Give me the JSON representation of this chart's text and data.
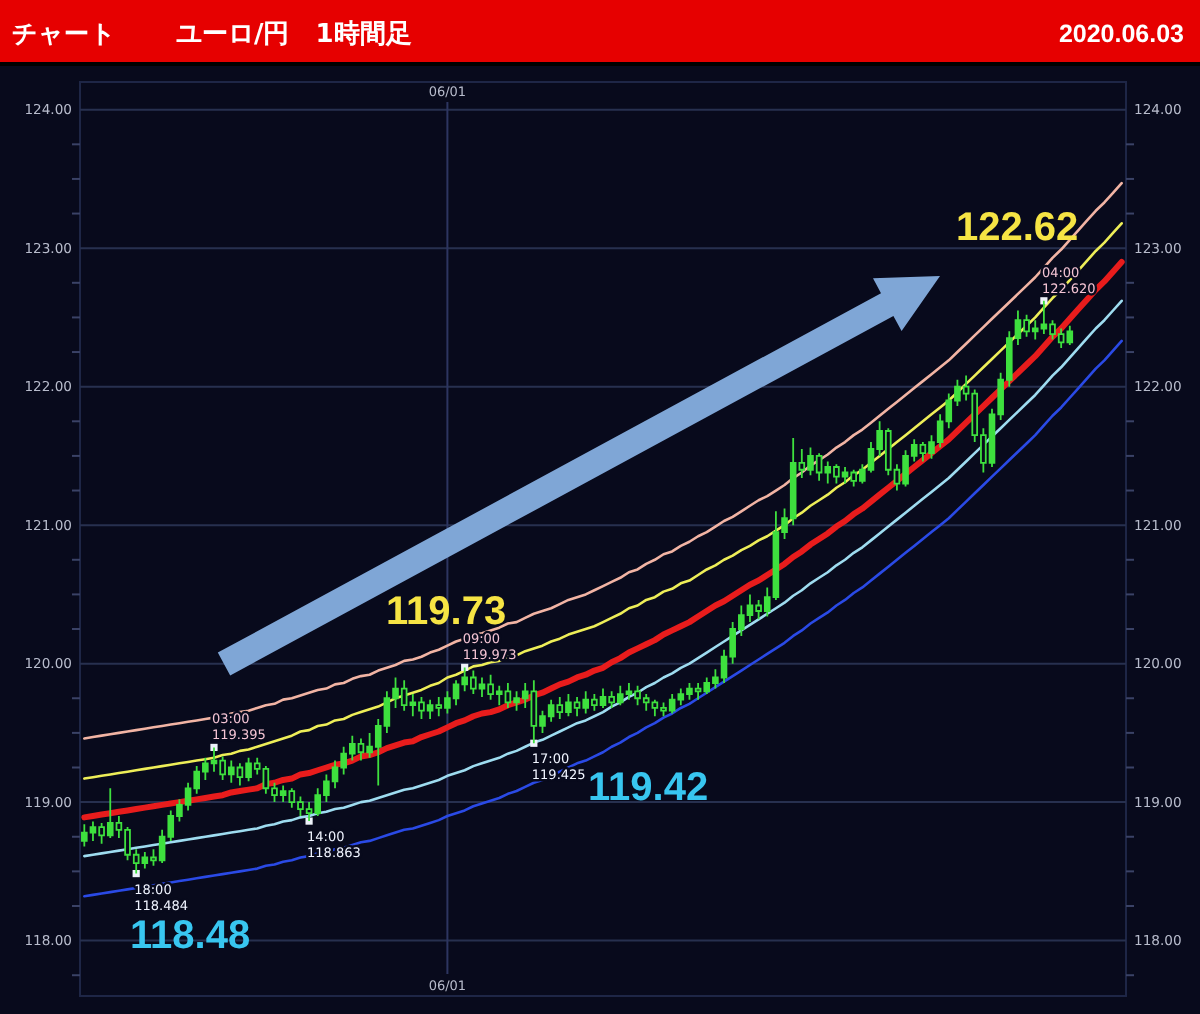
{
  "chart_data": {
    "type": "candlestick",
    "title": "チャート",
    "subtitle": "ユーロ/円　1時間足",
    "annotations": [
      "2020.06.03",
      "118.48",
      "119.73",
      "119.42",
      "122.62"
    ],
    "categories": [
      null,
      null,
      null,
      null,
      null,
      null,
      null,
      null,
      null,
      null,
      null,
      null,
      null,
      null,
      null,
      null,
      null,
      null,
      null,
      null,
      null,
      null,
      null,
      null,
      null,
      null,
      null,
      null,
      null,
      null,
      null,
      null,
      null,
      null,
      null,
      null,
      null,
      null,
      null,
      null,
      null,
      null,
      "06/01",
      null,
      null,
      null,
      null,
      null,
      null,
      null,
      null,
      null,
      null,
      null,
      null,
      null,
      null,
      null,
      null,
      null,
      null,
      null,
      null,
      null,
      null,
      null,
      null,
      null,
      null,
      null,
      null,
      null,
      null,
      null,
      null,
      null,
      null,
      null,
      null,
      null,
      null,
      null,
      null,
      null,
      null,
      null,
      null,
      null,
      null,
      null,
      null,
      null,
      null,
      null,
      null,
      null,
      null,
      null,
      null,
      null,
      null,
      null,
      null,
      null,
      null,
      null,
      null,
      null,
      null,
      null,
      null,
      null,
      null,
      null,
      null,
      null,
      null,
      null,
      null,
      null,
      null
    ],
    "color": "#3ee03e",
    "ohlc": [
      [
        118.72,
        118.84,
        118.68,
        118.78
      ],
      [
        118.78,
        118.86,
        118.72,
        118.82
      ],
      [
        118.82,
        118.85,
        118.7,
        118.76
      ],
      [
        118.76,
        119.1,
        118.74,
        118.85
      ],
      [
        118.85,
        118.9,
        118.74,
        118.8
      ],
      [
        118.8,
        118.82,
        118.58,
        118.62
      ],
      [
        118.62,
        118.66,
        118.484,
        118.56
      ],
      [
        118.56,
        118.64,
        118.52,
        118.6
      ],
      [
        118.6,
        118.66,
        118.54,
        118.58
      ],
      [
        118.58,
        118.8,
        118.56,
        118.75
      ],
      [
        118.75,
        118.94,
        118.72,
        118.9
      ],
      [
        118.9,
        119.02,
        118.86,
        118.98
      ],
      [
        118.98,
        119.14,
        118.94,
        119.1
      ],
      [
        119.1,
        119.26,
        119.06,
        119.22
      ],
      [
        119.22,
        119.32,
        119.16,
        119.28
      ],
      [
        119.28,
        119.395,
        119.22,
        119.3
      ],
      [
        119.3,
        119.33,
        119.16,
        119.2
      ],
      [
        119.2,
        119.3,
        119.14,
        119.25
      ],
      [
        119.25,
        119.28,
        119.12,
        119.18
      ],
      [
        119.18,
        119.32,
        119.15,
        119.28
      ],
      [
        119.28,
        119.32,
        119.2,
        119.24
      ],
      [
        119.24,
        119.26,
        119.06,
        119.1
      ],
      [
        119.1,
        119.14,
        119.0,
        119.05
      ],
      [
        119.05,
        119.12,
        119.0,
        119.08
      ],
      [
        119.08,
        119.1,
        118.96,
        119.0
      ],
      [
        119.0,
        119.04,
        118.9,
        118.95
      ],
      [
        118.95,
        119.0,
        118.863,
        118.92
      ],
      [
        118.92,
        119.1,
        118.9,
        119.05
      ],
      [
        119.05,
        119.2,
        119.0,
        119.15
      ],
      [
        119.15,
        119.3,
        119.1,
        119.25
      ],
      [
        119.25,
        119.4,
        119.2,
        119.35
      ],
      [
        119.35,
        119.48,
        119.3,
        119.42
      ],
      [
        119.42,
        119.46,
        119.3,
        119.36
      ],
      [
        119.36,
        119.5,
        119.32,
        119.4
      ],
      [
        119.4,
        119.6,
        119.12,
        119.55
      ],
      [
        119.55,
        119.8,
        119.5,
        119.75
      ],
      [
        119.75,
        119.9,
        119.68,
        119.82
      ],
      [
        119.82,
        119.88,
        119.66,
        119.7
      ],
      [
        119.7,
        119.78,
        119.62,
        119.72
      ],
      [
        119.72,
        119.76,
        119.6,
        119.66
      ],
      [
        119.66,
        119.74,
        119.6,
        119.7
      ],
      [
        119.7,
        119.76,
        119.62,
        119.68
      ],
      [
        119.68,
        119.8,
        119.64,
        119.75
      ],
      [
        119.75,
        119.88,
        119.7,
        119.85
      ],
      [
        119.85,
        119.973,
        119.8,
        119.9
      ],
      [
        119.9,
        119.95,
        119.78,
        119.82
      ],
      [
        119.82,
        119.9,
        119.76,
        119.85
      ],
      [
        119.85,
        119.92,
        119.74,
        119.78
      ],
      [
        119.78,
        119.84,
        119.7,
        119.8
      ],
      [
        119.8,
        119.86,
        119.68,
        119.72
      ],
      [
        119.72,
        119.8,
        119.66,
        119.75
      ],
      [
        119.75,
        119.86,
        119.68,
        119.8
      ],
      [
        119.8,
        119.88,
        119.425,
        119.55
      ],
      [
        119.55,
        119.66,
        119.5,
        119.62
      ],
      [
        119.62,
        119.74,
        119.58,
        119.7
      ],
      [
        119.7,
        119.76,
        119.6,
        119.65
      ],
      [
        119.65,
        119.78,
        119.62,
        119.72
      ],
      [
        119.72,
        119.76,
        119.62,
        119.68
      ],
      [
        119.68,
        119.8,
        119.64,
        119.74
      ],
      [
        119.74,
        119.78,
        119.66,
        119.7
      ],
      [
        119.7,
        119.82,
        119.68,
        119.76
      ],
      [
        119.76,
        119.8,
        119.68,
        119.72
      ],
      [
        119.72,
        119.84,
        119.7,
        119.78
      ],
      [
        119.78,
        119.86,
        119.74,
        119.8
      ],
      [
        119.8,
        119.84,
        119.7,
        119.75
      ],
      [
        119.75,
        119.78,
        119.66,
        119.72
      ],
      [
        119.72,
        119.74,
        119.62,
        119.68
      ],
      [
        119.68,
        119.72,
        119.62,
        119.66
      ],
      [
        119.66,
        119.78,
        119.64,
        119.74
      ],
      [
        119.74,
        119.82,
        119.7,
        119.78
      ],
      [
        119.78,
        119.86,
        119.74,
        119.82
      ],
      [
        119.82,
        119.86,
        119.74,
        119.8
      ],
      [
        119.8,
        119.9,
        119.78,
        119.86
      ],
      [
        119.86,
        119.96,
        119.82,
        119.9
      ],
      [
        119.9,
        120.1,
        119.86,
        120.05
      ],
      [
        120.05,
        120.3,
        120.0,
        120.25
      ],
      [
        120.25,
        120.42,
        120.2,
        120.35
      ],
      [
        120.35,
        120.5,
        120.3,
        120.42
      ],
      [
        120.42,
        120.46,
        120.32,
        120.38
      ],
      [
        120.38,
        120.55,
        120.34,
        120.48
      ],
      [
        120.48,
        121.1,
        120.46,
        120.95
      ],
      [
        120.95,
        121.12,
        120.9,
        121.05
      ],
      [
        121.05,
        121.63,
        121.0,
        121.45
      ],
      [
        121.45,
        121.55,
        121.34,
        121.4
      ],
      [
        121.4,
        121.56,
        121.36,
        121.5
      ],
      [
        121.5,
        121.52,
        121.32,
        121.38
      ],
      [
        121.38,
        121.46,
        121.3,
        121.42
      ],
      [
        121.42,
        121.44,
        121.3,
        121.35
      ],
      [
        121.35,
        121.42,
        121.3,
        121.38
      ],
      [
        121.38,
        121.4,
        121.28,
        121.32
      ],
      [
        121.32,
        121.44,
        121.3,
        121.4
      ],
      [
        121.4,
        121.6,
        121.38,
        121.55
      ],
      [
        121.55,
        121.75,
        121.5,
        121.68
      ],
      [
        121.68,
        121.7,
        121.36,
        121.4
      ],
      [
        121.4,
        121.44,
        121.25,
        121.3
      ],
      [
        121.3,
        121.54,
        121.28,
        121.5
      ],
      [
        121.5,
        121.62,
        121.46,
        121.58
      ],
      [
        121.58,
        121.6,
        121.46,
        121.52
      ],
      [
        121.52,
        121.65,
        121.48,
        121.6
      ],
      [
        121.6,
        121.8,
        121.56,
        121.75
      ],
      [
        121.75,
        121.95,
        121.7,
        121.9
      ],
      [
        121.9,
        122.05,
        121.86,
        122.0
      ],
      [
        122.0,
        122.08,
        121.9,
        121.95
      ],
      [
        121.95,
        121.98,
        121.6,
        121.65
      ],
      [
        121.65,
        121.7,
        121.38,
        121.45
      ],
      [
        121.45,
        121.84,
        121.42,
        121.8
      ],
      [
        121.8,
        122.1,
        121.76,
        122.05
      ],
      [
        122.05,
        122.4,
        122.0,
        122.35
      ],
      [
        122.35,
        122.55,
        122.3,
        122.48
      ],
      [
        122.48,
        122.52,
        122.36,
        122.4
      ],
      [
        122.4,
        122.48,
        122.34,
        122.42
      ],
      [
        122.42,
        122.62,
        122.38,
        122.45
      ],
      [
        122.45,
        122.48,
        122.34,
        122.38
      ],
      [
        122.38,
        122.42,
        122.28,
        122.32
      ],
      [
        122.32,
        122.44,
        122.3,
        122.4
      ],
      null,
      null,
      null,
      null,
      null,
      null
    ],
    "series": [
      {
        "type": "line",
        "color": "#f2b4a4",
        "values": [
          119.46,
          119.47,
          119.48,
          119.49,
          119.5,
          119.51,
          119.52,
          119.53,
          119.54,
          119.55,
          119.56,
          119.57,
          119.58,
          119.59,
          119.6,
          119.61,
          119.62,
          119.64,
          119.65,
          119.66,
          119.68,
          119.7,
          119.71,
          119.74,
          119.75,
          119.77,
          119.79,
          119.81,
          119.82,
          119.85,
          119.86,
          119.89,
          119.91,
          119.92,
          119.95,
          119.97,
          119.99,
          120.02,
          120.03,
          120.05,
          120.08,
          120.1,
          120.13,
          120.16,
          120.18,
          120.21,
          120.22,
          120.24,
          120.26,
          120.29,
          120.3,
          120.33,
          120.36,
          120.38,
          120.4,
          120.43,
          120.46,
          120.48,
          120.5,
          120.53,
          120.56,
          120.59,
          120.62,
          120.66,
          120.68,
          120.72,
          120.75,
          120.79,
          120.81,
          120.85,
          120.88,
          120.92,
          120.95,
          120.99,
          121.03,
          121.06,
          121.1,
          121.14,
          121.18,
          121.21,
          121.25,
          121.29,
          121.34,
          121.38,
          121.43,
          121.47,
          121.51,
          121.56,
          121.6,
          121.65,
          121.69,
          121.74,
          121.79,
          121.84,
          121.89,
          121.94,
          121.99,
          122.04,
          122.09,
          122.14,
          122.19,
          122.25,
          122.31,
          122.37,
          122.43,
          122.49,
          122.55,
          122.61,
          122.67,
          122.73,
          122.79,
          122.86,
          122.93,
          122.99,
          123.06,
          123.13,
          123.2,
          123.27,
          123.33,
          123.4,
          123.47
        ]
      },
      {
        "type": "line",
        "color": "#eeee58",
        "values": [
          119.17,
          119.18,
          119.19,
          119.2,
          119.21,
          119.22,
          119.23,
          119.24,
          119.25,
          119.26,
          119.27,
          119.28,
          119.29,
          119.3,
          119.31,
          119.32,
          119.34,
          119.35,
          119.37,
          119.38,
          119.4,
          119.42,
          119.44,
          119.46,
          119.48,
          119.51,
          119.52,
          119.55,
          119.56,
          119.59,
          119.6,
          119.63,
          119.65,
          119.67,
          119.69,
          119.72,
          119.75,
          119.77,
          119.79,
          119.81,
          119.84,
          119.86,
          119.9,
          119.92,
          119.95,
          119.98,
          119.99,
          120.01,
          120.02,
          120.05,
          120.06,
          120.09,
          120.11,
          120.13,
          120.16,
          120.18,
          120.21,
          120.23,
          120.25,
          120.27,
          120.3,
          120.33,
          120.36,
          120.4,
          120.42,
          120.46,
          120.48,
          120.52,
          120.54,
          120.58,
          120.6,
          120.64,
          120.68,
          120.71,
          120.75,
          120.78,
          120.82,
          120.85,
          120.89,
          120.92,
          120.96,
          121.0,
          121.05,
          121.09,
          121.14,
          121.18,
          121.22,
          121.27,
          121.31,
          121.36,
          121.4,
          121.45,
          121.5,
          121.55,
          121.6,
          121.65,
          121.7,
          121.75,
          121.8,
          121.85,
          121.9,
          121.96,
          122.02,
          122.08,
          122.14,
          122.2,
          122.26,
          122.32,
          122.38,
          122.44,
          122.5,
          122.57,
          122.64,
          122.7,
          122.77,
          122.84,
          122.91,
          122.98,
          123.04,
          123.11,
          123.18
        ]
      },
      {
        "type": "line",
        "color": "#e81c1c",
        "values": [
          118.89,
          118.9,
          118.91,
          118.92,
          118.93,
          118.94,
          118.95,
          118.96,
          118.97,
          118.98,
          118.99,
          119.0,
          119.01,
          119.02,
          119.03,
          119.04,
          119.05,
          119.07,
          119.08,
          119.09,
          119.1,
          119.13,
          119.14,
          119.16,
          119.17,
          119.2,
          119.21,
          119.23,
          119.25,
          119.27,
          119.28,
          119.3,
          119.33,
          119.34,
          119.36,
          119.39,
          119.41,
          119.43,
          119.44,
          119.47,
          119.49,
          119.51,
          119.54,
          119.57,
          119.59,
          119.62,
          119.64,
          119.65,
          119.67,
          119.7,
          119.72,
          119.74,
          119.77,
          119.79,
          119.82,
          119.85,
          119.87,
          119.9,
          119.92,
          119.95,
          119.97,
          120.01,
          120.04,
          120.08,
          120.11,
          120.14,
          120.17,
          120.21,
          120.24,
          120.27,
          120.3,
          120.34,
          120.38,
          120.42,
          120.45,
          120.49,
          120.53,
          120.57,
          120.6,
          120.64,
          120.68,
          120.72,
          120.77,
          120.81,
          120.86,
          120.9,
          120.94,
          120.99,
          121.03,
          121.08,
          121.12,
          121.17,
          121.22,
          121.27,
          121.32,
          121.37,
          121.42,
          121.47,
          121.52,
          121.57,
          121.62,
          121.68,
          121.74,
          121.8,
          121.86,
          121.92,
          121.98,
          122.04,
          122.1,
          122.16,
          122.22,
          122.29,
          122.36,
          122.42,
          122.49,
          122.56,
          122.63,
          122.7,
          122.76,
          122.83,
          122.9
        ]
      },
      {
        "type": "line",
        "color": "#9edcf0",
        "values": [
          118.61,
          118.62,
          118.63,
          118.64,
          118.65,
          118.66,
          118.67,
          118.68,
          118.69,
          118.7,
          118.71,
          118.72,
          118.73,
          118.74,
          118.75,
          118.76,
          118.77,
          118.78,
          118.79,
          118.8,
          118.81,
          118.83,
          118.84,
          118.86,
          118.87,
          118.89,
          118.9,
          118.92,
          118.93,
          118.95,
          118.96,
          118.98,
          119.0,
          119.01,
          119.03,
          119.05,
          119.07,
          119.09,
          119.1,
          119.12,
          119.14,
          119.16,
          119.19,
          119.21,
          119.23,
          119.26,
          119.28,
          119.3,
          119.32,
          119.35,
          119.37,
          119.4,
          119.43,
          119.45,
          119.48,
          119.51,
          119.54,
          119.57,
          119.59,
          119.62,
          119.65,
          119.69,
          119.72,
          119.76,
          119.79,
          119.83,
          119.86,
          119.9,
          119.93,
          119.97,
          120.0,
          120.04,
          120.08,
          120.12,
          120.16,
          120.2,
          120.24,
          120.28,
          120.32,
          120.36,
          120.4,
          120.44,
          120.49,
          120.53,
          120.58,
          120.62,
          120.66,
          120.71,
          120.75,
          120.8,
          120.84,
          120.89,
          120.94,
          120.99,
          121.04,
          121.09,
          121.14,
          121.19,
          121.24,
          121.29,
          121.34,
          121.4,
          121.46,
          121.52,
          121.58,
          121.64,
          121.7,
          121.76,
          121.82,
          121.88,
          121.94,
          122.01,
          122.08,
          122.14,
          122.21,
          122.28,
          122.35,
          122.42,
          122.48,
          122.55,
          122.62
        ]
      },
      {
        "type": "line",
        "color": "#2a4ae6",
        "values": [
          118.32,
          118.33,
          118.34,
          118.35,
          118.36,
          118.37,
          118.38,
          118.39,
          118.4,
          118.41,
          118.42,
          118.43,
          118.44,
          118.45,
          118.46,
          118.47,
          118.48,
          118.49,
          118.5,
          118.51,
          118.52,
          118.54,
          118.55,
          118.57,
          118.58,
          118.6,
          118.61,
          118.63,
          118.64,
          118.66,
          118.67,
          118.69,
          118.71,
          118.72,
          118.74,
          118.76,
          118.78,
          118.8,
          118.81,
          118.83,
          118.85,
          118.87,
          118.9,
          118.92,
          118.94,
          118.97,
          118.99,
          119.01,
          119.03,
          119.06,
          119.08,
          119.11,
          119.14,
          119.16,
          119.19,
          119.22,
          119.25,
          119.28,
          119.3,
          119.33,
          119.36,
          119.4,
          119.43,
          119.47,
          119.5,
          119.54,
          119.57,
          119.61,
          119.64,
          119.68,
          119.71,
          119.75,
          119.79,
          119.83,
          119.87,
          119.91,
          119.95,
          119.99,
          120.03,
          120.07,
          120.11,
          120.15,
          120.2,
          120.24,
          120.29,
          120.33,
          120.37,
          120.42,
          120.46,
          120.51,
          120.55,
          120.6,
          120.65,
          120.7,
          120.75,
          120.8,
          120.85,
          120.9,
          120.95,
          121.0,
          121.05,
          121.11,
          121.17,
          121.23,
          121.29,
          121.35,
          121.41,
          121.47,
          121.53,
          121.59,
          121.65,
          121.72,
          121.79,
          121.85,
          121.92,
          121.99,
          122.06,
          122.13,
          122.19,
          122.26,
          122.33
        ]
      },
      {
        "type": "scatter",
        "marker": "square",
        "color": "#eef2fa",
        "values": [
          null,
          null,
          null,
          null,
          null,
          null,
          118.484,
          null,
          null,
          null,
          null,
          null,
          null,
          null,
          null,
          119.395,
          null,
          null,
          null,
          null,
          null,
          null,
          null,
          null,
          null,
          null,
          118.863,
          null,
          null,
          null,
          null,
          null,
          null,
          null,
          null,
          null,
          null,
          null,
          null,
          null,
          null,
          null,
          null,
          null,
          119.973,
          null,
          null,
          null,
          null,
          null,
          null,
          null,
          119.425,
          null,
          null,
          null,
          null,
          null,
          null,
          null,
          null,
          null,
          null,
          null,
          null,
          null,
          null,
          null,
          null,
          null,
          null,
          null,
          null,
          null,
          null,
          null,
          null,
          null,
          null,
          null,
          null,
          null,
          null,
          null,
          null,
          null,
          null,
          null,
          null,
          null,
          null,
          null,
          null,
          null,
          null,
          null,
          null,
          null,
          null,
          null,
          null,
          null,
          null,
          null,
          null,
          null,
          null,
          null,
          null,
          null,
          null,
          122.62,
          null,
          null,
          null,
          null,
          null,
          null,
          null,
          null,
          null
        ],
        "value_labels": [
          null,
          null,
          null,
          null,
          null,
          null,
          "18:00\n118.484",
          null,
          null,
          null,
          null,
          null,
          null,
          null,
          null,
          "03:00\n119.395",
          null,
          null,
          null,
          null,
          null,
          null,
          null,
          null,
          null,
          null,
          "14:00\n118.863",
          null,
          null,
          null,
          null,
          null,
          null,
          null,
          null,
          null,
          null,
          null,
          null,
          null,
          null,
          null,
          null,
          null,
          "09:00\n119.973",
          null,
          null,
          null,
          null,
          null,
          null,
          null,
          "17:00\n119.425",
          null,
          null,
          null,
          null,
          null,
          null,
          null,
          null,
          null,
          null,
          null,
          null,
          null,
          null,
          null,
          null,
          null,
          null,
          null,
          null,
          null,
          null,
          null,
          null,
          null,
          null,
          null,
          null,
          null,
          null,
          null,
          null,
          null,
          null,
          null,
          null,
          null,
          null,
          null,
          null,
          null,
          null,
          null,
          null,
          null,
          null,
          null,
          null,
          null,
          null,
          null,
          null,
          null,
          null,
          null,
          null,
          null,
          null,
          "04:00\n122.620",
          null,
          null,
          null,
          null,
          null,
          null,
          null,
          null,
          null
        ]
      }
    ],
    "ylim": [
      117.6,
      124.2
    ],
    "yticks": [
      {
        "value": 117.75,
        "label": null
      },
      {
        "value": 118,
        "label": "118.00"
      },
      {
        "value": 118.25,
        "label": null
      },
      {
        "value": 118.5,
        "label": null
      },
      {
        "value": 118.75,
        "label": null
      },
      {
        "value": 119,
        "label": "119.00"
      },
      {
        "value": 119.25,
        "label": null
      },
      {
        "value": 119.5,
        "label": null
      },
      {
        "value": 119.75,
        "label": null
      },
      {
        "value": 120,
        "label": "120.00"
      },
      {
        "value": 120.25,
        "label": null
      },
      {
        "value": 120.5,
        "label": null
      },
      {
        "value": 120.75,
        "label": null
      },
      {
        "value": 121,
        "label": "121.00"
      },
      {
        "value": 121.25,
        "label": null
      },
      {
        "value": 121.5,
        "label": null
      },
      {
        "value": 121.75,
        "label": null
      },
      {
        "value": 122,
        "label": "122.00"
      },
      {
        "value": 122.25,
        "label": null
      },
      {
        "value": 122.5,
        "label": null
      },
      {
        "value": 122.75,
        "label": null
      },
      {
        "value": 123,
        "label": "123.00"
      },
      {
        "value": 123.25,
        "label": null
      },
      {
        "value": 123.5,
        "label": null
      },
      {
        "value": 123.75,
        "label": null
      },
      {
        "value": 124,
        "label": "124.00"
      }
    ],
    "y2lim": [
      117.6,
      124.2
    ],
    "y2ticks": [
      {
        "value": 117.75,
        "label": null
      },
      {
        "value": 118,
        "label": "118.00"
      },
      {
        "value": 118.25,
        "label": null
      },
      {
        "value": 118.5,
        "label": null
      },
      {
        "value": 118.75,
        "label": null
      },
      {
        "value": 119,
        "label": "119.00"
      },
      {
        "value": 119.25,
        "label": null
      },
      {
        "value": 119.5,
        "label": null
      },
      {
        "value": 119.75,
        "label": null
      },
      {
        "value": 120,
        "label": "120.00"
      },
      {
        "value": 120.25,
        "label": null
      },
      {
        "value": 120.5,
        "label": null
      },
      {
        "value": 120.75,
        "label": null
      },
      {
        "value": 121,
        "label": "121.00"
      },
      {
        "value": 121.25,
        "label": null
      },
      {
        "value": 121.5,
        "label": null
      },
      {
        "value": 121.75,
        "label": null
      },
      {
        "value": 122,
        "label": "122.00"
      },
      {
        "value": 122.25,
        "label": null
      },
      {
        "value": 122.5,
        "label": null
      },
      {
        "value": 122.75,
        "label": null
      },
      {
        "value": 123,
        "label": "123.00"
      },
      {
        "value": 123.25,
        "label": null
      },
      {
        "value": 123.5,
        "label": null
      },
      {
        "value": 123.75,
        "label": null
      },
      {
        "value": 124,
        "label": "124.00"
      }
    ],
    "grid": true
  }
}
